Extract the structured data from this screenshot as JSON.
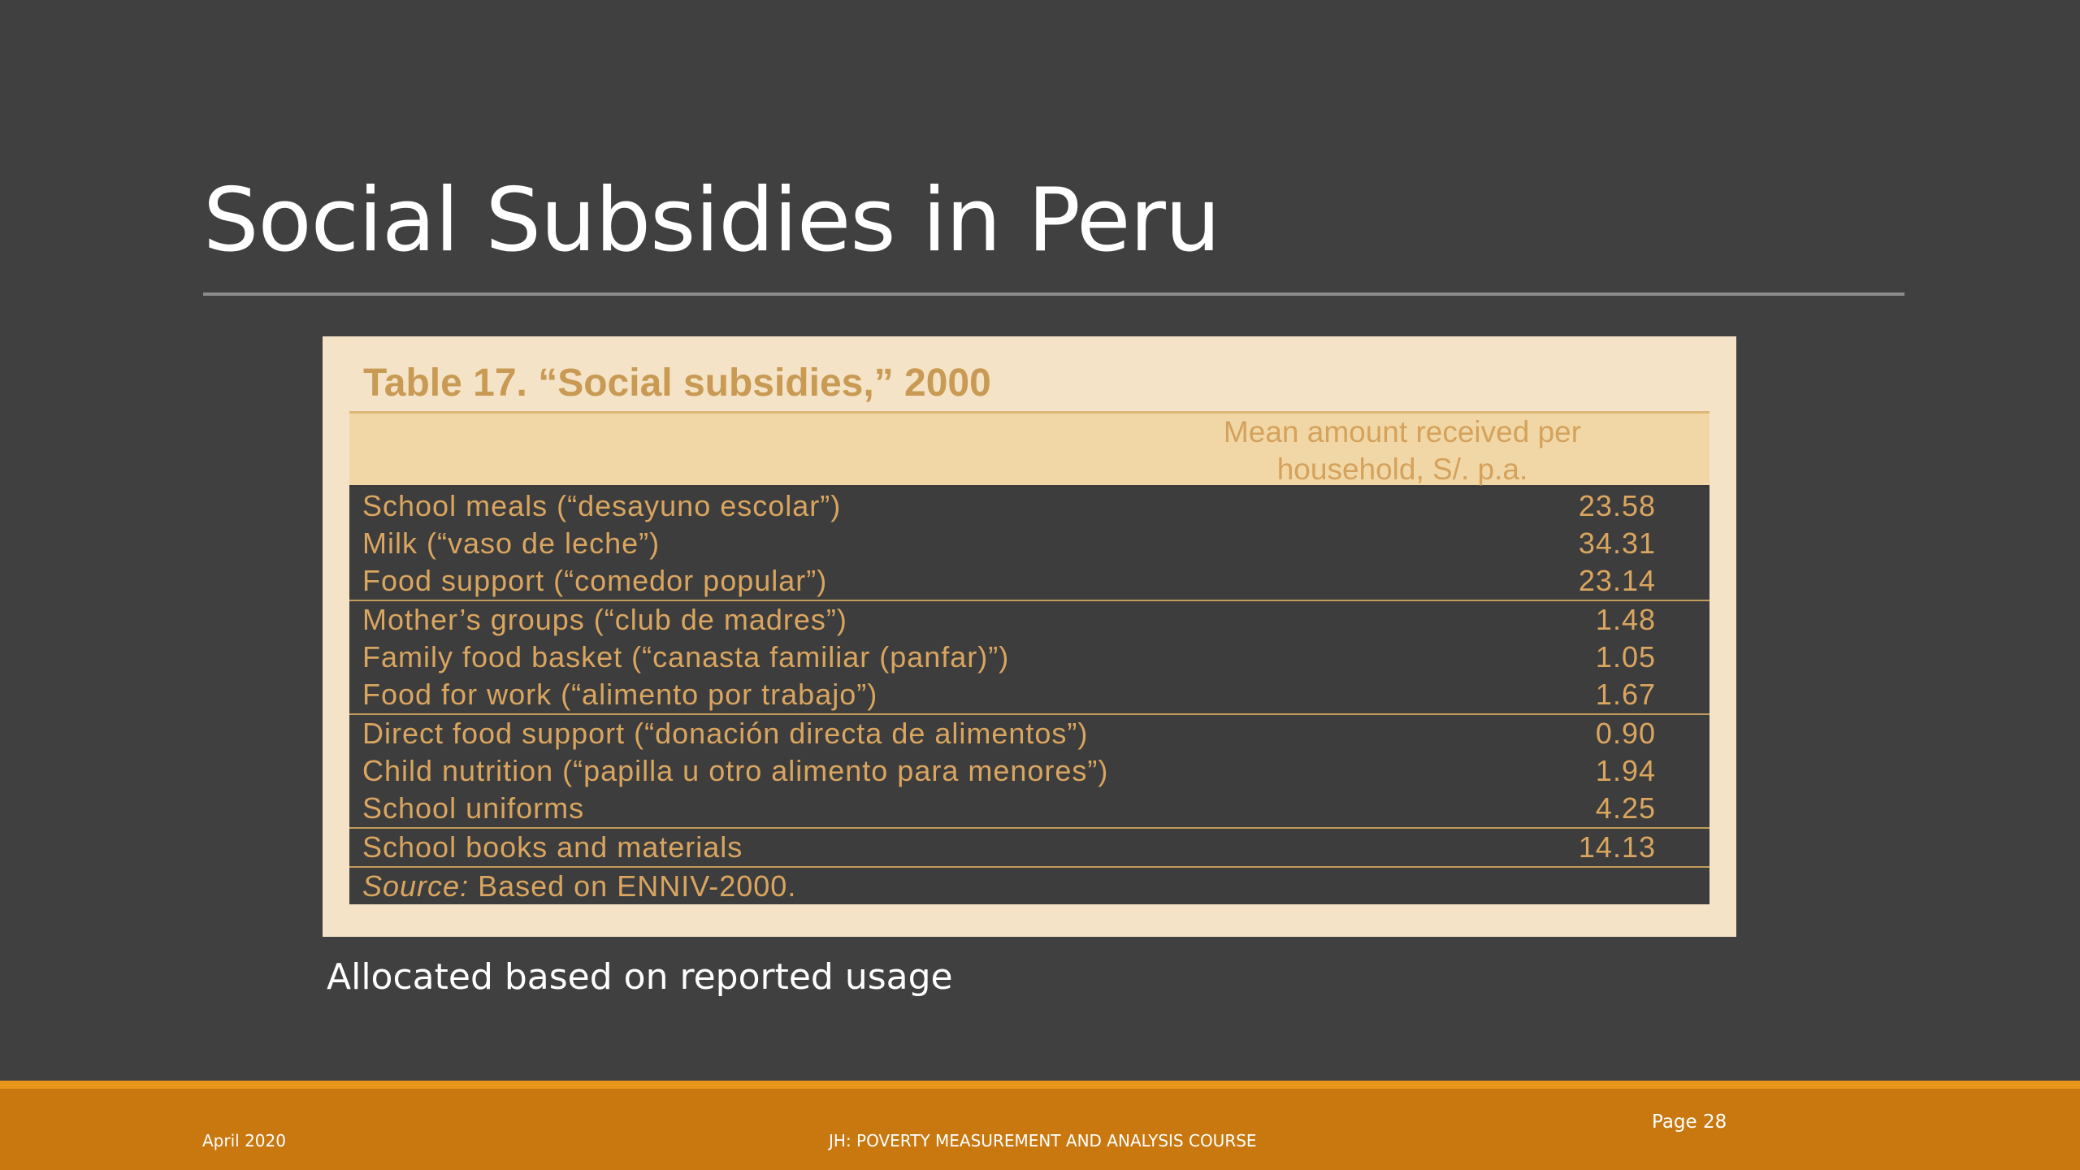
{
  "slide": {
    "title": "Social Subsidies in Peru",
    "subtitle": "Allocated based on reported usage"
  },
  "table": {
    "caption": "Table 17.  “Social subsidies,” 2000",
    "header_line1": "Mean amount received per",
    "header_line2": "household, S/. p.a.",
    "groups": [
      [
        {
          "label": "School meals (“desayuno escolar”)",
          "value": "23.58"
        },
        {
          "label": "Milk (“vaso de leche”)",
          "value": "34.31"
        },
        {
          "label": "Food support (“comedor popular”)",
          "value": "23.14"
        }
      ],
      [
        {
          "label": "Mother’s groups (“club de madres”)",
          "value": "1.48"
        },
        {
          "label": "Family food basket (“canasta familiar (panfar)”)",
          "value": "1.05"
        },
        {
          "label": "Food for work (“alimento por trabajo”)",
          "value": "1.67"
        }
      ],
      [
        {
          "label": "Direct food support (“donación directa de alimentos”)",
          "value": "0.90"
        },
        {
          "label": "Child nutrition (“papilla u otro alimento para menores”)",
          "value": "1.94"
        },
        {
          "label": "School uniforms",
          "value": "4.25"
        }
      ],
      [
        {
          "label": "School books and materials",
          "value": "14.13"
        }
      ]
    ],
    "source_label": "Source:",
    "source_text": " Based on ENNIV-2000."
  },
  "footer": {
    "date": "April 2020",
    "course": "JH: POVERTY MEASUREMENT AND ANALYSIS COURSE",
    "page": "Page 28"
  },
  "colors": {
    "background": "#404040",
    "panel": "#f4e3c6",
    "table_text": "#d9a55f",
    "footer": "#c97810"
  }
}
